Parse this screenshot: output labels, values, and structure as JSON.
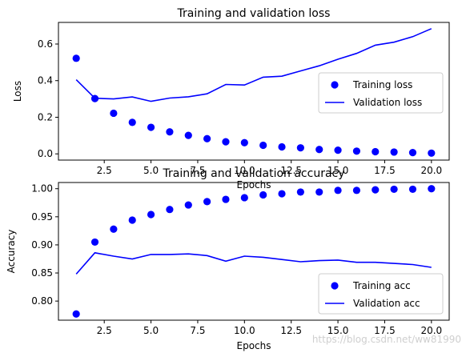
{
  "chart_data": [
    {
      "type": "line",
      "title": "Training and validation loss",
      "xlabel": "Epochs",
      "ylabel": "Loss",
      "xlim": [
        0.05,
        20.95
      ],
      "ylim": [
        -0.034,
        0.718
      ],
      "xticks": [
        2.5,
        5.0,
        7.5,
        10.0,
        12.5,
        15.0,
        17.5,
        20.0
      ],
      "xtick_labels": [
        "2.5",
        "5.0",
        "7.5",
        "10.0",
        "12.5",
        "15.0",
        "17.5",
        "20.0"
      ],
      "yticks": [
        0.0,
        0.2,
        0.4,
        0.6
      ],
      "ytick_labels": [
        "0.0",
        "0.2",
        "0.4",
        "0.6"
      ],
      "grid": false,
      "legend_position": "center-right",
      "x": [
        1,
        2,
        3,
        4,
        5,
        6,
        7,
        8,
        9,
        10,
        11,
        12,
        13,
        14,
        15,
        16,
        17,
        18,
        19,
        20
      ],
      "series": [
        {
          "name": "Training loss",
          "style": "points",
          "color": "#0000ff",
          "values": [
            0.522,
            0.302,
            0.222,
            0.172,
            0.145,
            0.12,
            0.101,
            0.083,
            0.066,
            0.061,
            0.047,
            0.038,
            0.033,
            0.024,
            0.02,
            0.015,
            0.012,
            0.01,
            0.007,
            0.004
          ]
        },
        {
          "name": "Validation loss",
          "style": "line",
          "color": "#0000ff",
          "values": [
            0.405,
            0.304,
            0.3,
            0.311,
            0.287,
            0.305,
            0.312,
            0.328,
            0.379,
            0.376,
            0.419,
            0.424,
            0.453,
            0.481,
            0.517,
            0.549,
            0.594,
            0.61,
            0.64,
            0.684
          ]
        }
      ]
    },
    {
      "type": "line",
      "title": "Training and validation accuracy",
      "xlabel": "Epochs",
      "ylabel": "Accuracy",
      "xlim": [
        0.05,
        20.95
      ],
      "ylim": [
        0.766,
        1.011
      ],
      "xticks": [
        2.5,
        5.0,
        7.5,
        10.0,
        12.5,
        15.0,
        17.5,
        20.0
      ],
      "xtick_labels": [
        "2.5",
        "5.0",
        "7.5",
        "10.0",
        "12.5",
        "15.0",
        "17.5",
        "20.0"
      ],
      "yticks": [
        0.8,
        0.85,
        0.9,
        0.95,
        1.0
      ],
      "ytick_labels": [
        "0.80",
        "0.85",
        "0.90",
        "0.95",
        "1.00"
      ],
      "grid": false,
      "legend_position": "bottom-right",
      "x": [
        1,
        2,
        3,
        4,
        5,
        6,
        7,
        8,
        9,
        10,
        11,
        12,
        13,
        14,
        15,
        16,
        17,
        18,
        19,
        20
      ],
      "series": [
        {
          "name": "Training acc",
          "style": "points",
          "color": "#0000ff",
          "values": [
            0.777,
            0.905,
            0.928,
            0.944,
            0.954,
            0.963,
            0.971,
            0.977,
            0.981,
            0.984,
            0.989,
            0.991,
            0.994,
            0.994,
            0.997,
            0.997,
            0.998,
            0.999,
            0.999,
            1.0
          ]
        },
        {
          "name": "Validation acc",
          "style": "line",
          "color": "#0000ff",
          "values": [
            0.848,
            0.886,
            0.88,
            0.875,
            0.883,
            0.883,
            0.884,
            0.881,
            0.871,
            0.88,
            0.878,
            0.874,
            0.87,
            0.872,
            0.873,
            0.869,
            0.869,
            0.867,
            0.865,
            0.86
          ]
        }
      ]
    }
  ],
  "watermark": "https://blog.csdn.net/ww81990"
}
